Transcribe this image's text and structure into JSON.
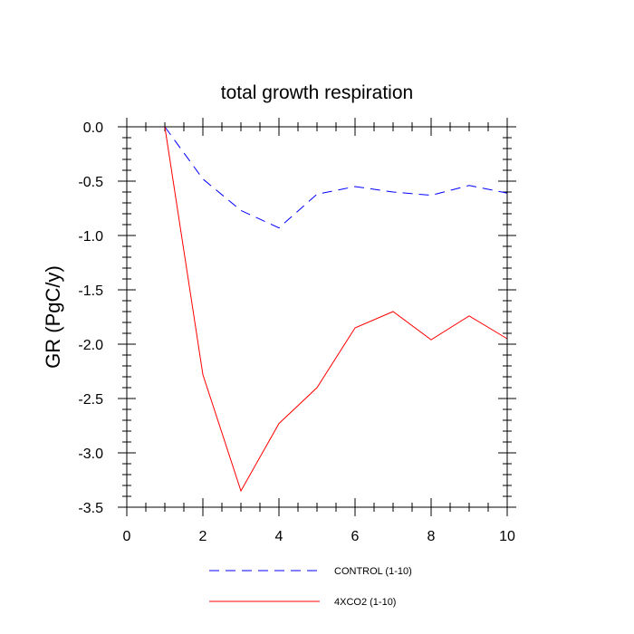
{
  "chart_data": {
    "type": "line",
    "title": "total growth respiration",
    "xlabel": "",
    "ylabel": "GR  (PgC/y)",
    "xlim": [
      0,
      10
    ],
    "ylim": [
      -3.5,
      0.0
    ],
    "xticks": [
      "0",
      "2",
      "4",
      "6",
      "8",
      "10"
    ],
    "yticks": [
      "0.0",
      "-0.5",
      "-1.0",
      "-1.5",
      "-2.0",
      "-2.5",
      "-3.0",
      "-3.5"
    ],
    "x": [
      1,
      2,
      3,
      4,
      5,
      6,
      7,
      8,
      9,
      10
    ],
    "series": [
      {
        "name": "CONTROL (1-10)",
        "color": "#0000ff",
        "style": "dashed",
        "values": [
          0.0,
          -0.48,
          -0.77,
          -0.93,
          -0.62,
          -0.55,
          -0.6,
          -0.63,
          -0.54,
          -0.61
        ]
      },
      {
        "name": "4XCO2 (1-10)",
        "color": "#ff0000",
        "style": "solid",
        "values": [
          0.0,
          -2.28,
          -3.35,
          -2.73,
          -2.4,
          -1.85,
          -1.7,
          -1.96,
          -1.74,
          -1.95
        ]
      }
    ],
    "legend_position": "bottom"
  }
}
